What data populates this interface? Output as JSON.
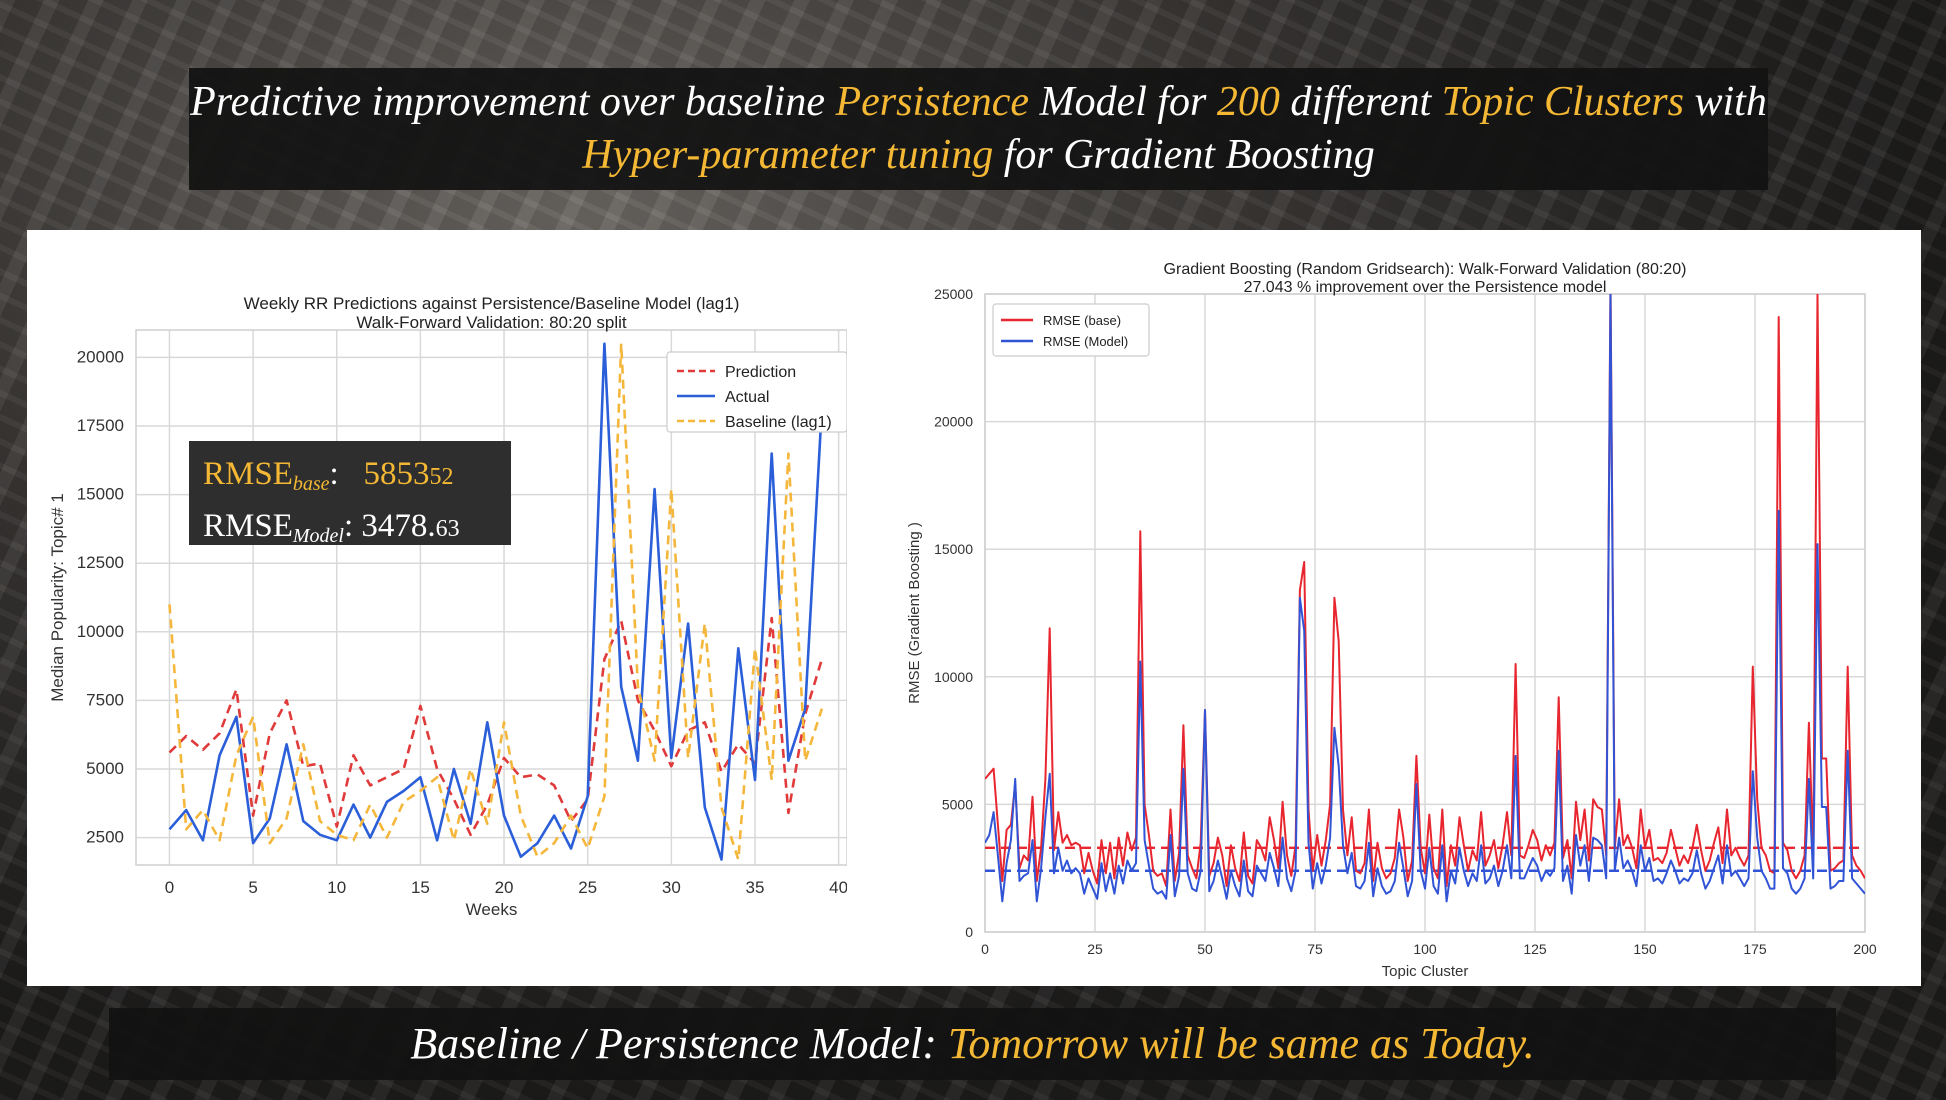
{
  "title_banner": {
    "segments": [
      {
        "text": "Predictive improvement over baseline ",
        "highlight": false
      },
      {
        "text": "Persistence",
        "highlight": true
      },
      {
        "text": " Model for ",
        "highlight": false
      },
      {
        "text": "200",
        "highlight": true
      },
      {
        "text": " different ",
        "highlight": false
      },
      {
        "text": "Topic Clusters",
        "highlight": true
      },
      {
        "text": " with ",
        "highlight": false
      },
      {
        "text": "Hyper-parameter tuning",
        "highlight": true
      },
      {
        "text": " for Gradient Boosting",
        "highlight": false
      }
    ]
  },
  "footer_banner": {
    "prefix": "Baseline / Persistence Model: ",
    "highlight": "Tomorrow will be same as Today."
  },
  "rmse_box": {
    "base_label": "RMSE",
    "base_sub": "base",
    "base_sep": ":",
    "base_main": "5853",
    "base_small": "52",
    "model_label": "RMSE",
    "model_sub": "Model",
    "model_sep": ":",
    "model_main": "3478.",
    "model_small": "63"
  },
  "colors": {
    "prediction": "#e03a3a",
    "actual": "#2b5fd9",
    "baseline": "#f5b73b",
    "rmse_base": "#e8262f",
    "rmse_model": "#3154d6",
    "highlight": "#f4b835",
    "grid": "#d9d9d9"
  },
  "chart_data": [
    {
      "type": "line",
      "title": "Weekly RR Predictions against Persistence/Baseline Model (lag1)",
      "subtitle": "Walk-Forward Validation: 80:20 split",
      "xlabel": "Weeks",
      "ylabel": "Median Popularity: Topic# 1",
      "xlim": [
        -2,
        40.5
      ],
      "ylim": [
        1500,
        21000
      ],
      "xticks": [
        0,
        5,
        10,
        15,
        20,
        25,
        30,
        35,
        40
      ],
      "yticks": [
        2500,
        5000,
        7500,
        10000,
        12500,
        15000,
        17500,
        20000
      ],
      "grid": true,
      "legend_position": "top-right",
      "x": [
        0,
        1,
        2,
        3,
        4,
        5,
        6,
        7,
        8,
        9,
        10,
        11,
        12,
        13,
        14,
        15,
        16,
        17,
        18,
        19,
        20,
        21,
        22,
        23,
        24,
        25,
        26,
        27,
        28,
        29,
        30,
        31,
        32,
        33,
        34,
        35,
        36,
        37,
        38,
        39
      ],
      "series": [
        {
          "name": "Prediction",
          "style": "dashed",
          "values": [
            5600,
            6200,
            5700,
            6300,
            7900,
            3300,
            6300,
            7500,
            5100,
            5200,
            2900,
            5500,
            4400,
            4700,
            5000,
            7300,
            5000,
            3900,
            2600,
            3700,
            5400,
            4700,
            4800,
            4400,
            3100,
            3900,
            9000,
            10400,
            7500,
            6400,
            5100,
            6400,
            6700,
            4900,
            5900,
            5200,
            10500,
            3400,
            7000,
            9000
          ]
        },
        {
          "name": "Actual",
          "style": "solid",
          "values": [
            2800,
            3500,
            2400,
            5500,
            6900,
            2300,
            3200,
            5900,
            3100,
            2600,
            2400,
            3700,
            2500,
            3800,
            4200,
            4700,
            2400,
            5000,
            3000,
            6700,
            3300,
            1800,
            2300,
            3300,
            2100,
            4000,
            20500,
            8000,
            5300,
            15200,
            5400,
            10300,
            3600,
            1700,
            9400,
            4600,
            16500,
            5300,
            7200,
            18200
          ]
        },
        {
          "name": "Baseline (lag1)",
          "style": "dashed",
          "values": [
            11000,
            2800,
            3500,
            2400,
            5500,
            6900,
            2300,
            3200,
            5900,
            3100,
            2600,
            2400,
            3700,
            2500,
            3800,
            4200,
            4700,
            2400,
            5000,
            3000,
            6700,
            3300,
            1800,
            2300,
            3300,
            2100,
            4000,
            20500,
            8000,
            5300,
            15200,
            5400,
            10300,
            3600,
            1700,
            9400,
            4600,
            16500,
            5300,
            7200
          ]
        }
      ]
    },
    {
      "type": "line",
      "title": "Gradient Boosting (Random Gridsearch): Walk-Forward Validation (80:20)",
      "subtitle": "27.043 % improvement over the Persistence model",
      "xlabel": "Topic Cluster",
      "ylabel": "RMSE (Gradient Boosting )",
      "xlim": [
        0,
        200
      ],
      "ylim": [
        0,
        25000
      ],
      "xticks": [
        0,
        25,
        50,
        75,
        100,
        125,
        150,
        175,
        200
      ],
      "yticks": [
        0,
        5000,
        10000,
        15000,
        20000,
        25000
      ],
      "grid": true,
      "legend_position": "top-left",
      "mean_lines": [
        {
          "series": "RMSE (base)",
          "value": 3300,
          "style": "dashed"
        },
        {
          "series": "RMSE (Model)",
          "value": 2400,
          "style": "dashed"
        }
      ],
      "series": [
        {
          "name": "RMSE (base)",
          "style": "solid",
          "values": [
            6000,
            6200,
            6400,
            4200,
            2000,
            4000,
            4200,
            5800,
            2500,
            3000,
            2800,
            5300,
            2000,
            3300,
            6000,
            11900,
            3200,
            4700,
            3500,
            3800,
            3400,
            3500,
            3400,
            2300,
            3100,
            2400,
            1900,
            3600,
            2300,
            3500,
            2100,
            3700,
            2600,
            3900,
            3200,
            3700,
            15700,
            5000,
            3800,
            2400,
            2200,
            2300,
            1800,
            4800,
            2000,
            3100,
            8100,
            3000,
            2500,
            2100,
            3500,
            8700,
            2200,
            2700,
            3700,
            3000,
            1800,
            3400,
            2500,
            2000,
            3900,
            2200,
            1900,
            3600,
            3300,
            2800,
            4500,
            3600,
            2500,
            5100,
            3000,
            2200,
            3400,
            13400,
            14500,
            4800,
            2400,
            3800,
            2600,
            3600,
            5000,
            13100,
            11400,
            4800,
            3000,
            4500,
            2400,
            2300,
            2700,
            4800,
            2000,
            3500,
            2500,
            2100,
            2300,
            2900,
            4800,
            3700,
            2000,
            2800,
            6900,
            3300,
            2300,
            4600,
            2500,
            2100,
            4800,
            1800,
            3400,
            2600,
            4500,
            3400,
            2400,
            3200,
            2800,
            4700,
            2600,
            3000,
            3600,
            2500,
            3400,
            4700,
            3000,
            10500,
            3000,
            2900,
            3400,
            4000,
            3600,
            2800,
            3400,
            3000,
            3500,
            9200,
            2900,
            3600,
            2100,
            5100,
            3600,
            4800,
            2800,
            5200,
            4900,
            4800,
            3000,
            25500,
            3300,
            5200,
            3400,
            3800,
            3300,
            2500,
            4800,
            3300,
            4000,
            2800,
            2900,
            2700,
            3100,
            4000,
            3300,
            2600,
            3000,
            2700,
            3300,
            4200,
            3200,
            2400,
            2800,
            3500,
            4100,
            2700,
            4800,
            3000,
            3300,
            2900,
            2600,
            3000,
            10400,
            5200,
            3300,
            3000,
            2400,
            2300,
            24100,
            3500,
            3200,
            2400,
            2100,
            2400,
            3000,
            8200,
            3000,
            25000,
            6800,
            6800,
            2400,
            2500,
            2700,
            2800,
            10400,
            3000,
            2600,
            2400,
            2100
          ]
        },
        {
          "name": "RMSE (Model)",
          "style": "solid",
          "values": [
            3500,
            3800,
            4700,
            3000,
            1200,
            2700,
            3600,
            6000,
            2000,
            2200,
            2300,
            3600,
            1200,
            2500,
            4500,
            6200,
            2300,
            3300,
            2400,
            2800,
            2300,
            2500,
            2300,
            1500,
            2100,
            1700,
            1300,
            2700,
            1600,
            2300,
            1500,
            2600,
            1900,
            2800,
            2400,
            2700,
            10600,
            3600,
            2600,
            1700,
            1500,
            1600,
            1300,
            3800,
            1400,
            2200,
            6400,
            2300,
            1700,
            1600,
            2400,
            8700,
            1600,
            2000,
            2800,
            2100,
            1300,
            2400,
            1800,
            1400,
            2800,
            1600,
            1400,
            2600,
            2300,
            2000,
            3100,
            2500,
            1800,
            3700,
            2100,
            1600,
            2400,
            13100,
            11800,
            3500,
            1700,
            2700,
            1900,
            2600,
            3700,
            8000,
            6500,
            3400,
            2300,
            3100,
            1800,
            1700,
            2000,
            3500,
            1400,
            2500,
            1800,
            1500,
            1600,
            2000,
            3500,
            2500,
            1400,
            2000,
            5800,
            2400,
            1700,
            3300,
            1800,
            1500,
            3400,
            1200,
            2400,
            1900,
            3300,
            2400,
            1800,
            2300,
            2000,
            3400,
            1900,
            2100,
            2600,
            1800,
            2400,
            3400,
            2100,
            6900,
            2100,
            2100,
            2500,
            2900,
            2600,
            2000,
            2400,
            2200,
            2500,
            7100,
            2000,
            2600,
            1500,
            3800,
            2600,
            3400,
            2000,
            3700,
            3600,
            3400,
            2100,
            25000,
            2400,
            3700,
            2500,
            2800,
            2400,
            1800,
            3400,
            2400,
            2900,
            2000,
            2100,
            1900,
            2300,
            2800,
            2400,
            1900,
            2100,
            2000,
            2300,
            3200,
            2300,
            1700,
            2000,
            2500,
            3000,
            1900,
            3400,
            2200,
            2400,
            2100,
            1800,
            2100,
            6300,
            3700,
            2400,
            2100,
            1700,
            1700,
            16500,
            2500,
            2300,
            1700,
            1500,
            1700,
            2100,
            6000,
            2100,
            15200,
            4900,
            4900,
            1700,
            1800,
            2000,
            2000,
            7100,
            2100,
            1900,
            1700,
            1500
          ]
        }
      ]
    }
  ]
}
